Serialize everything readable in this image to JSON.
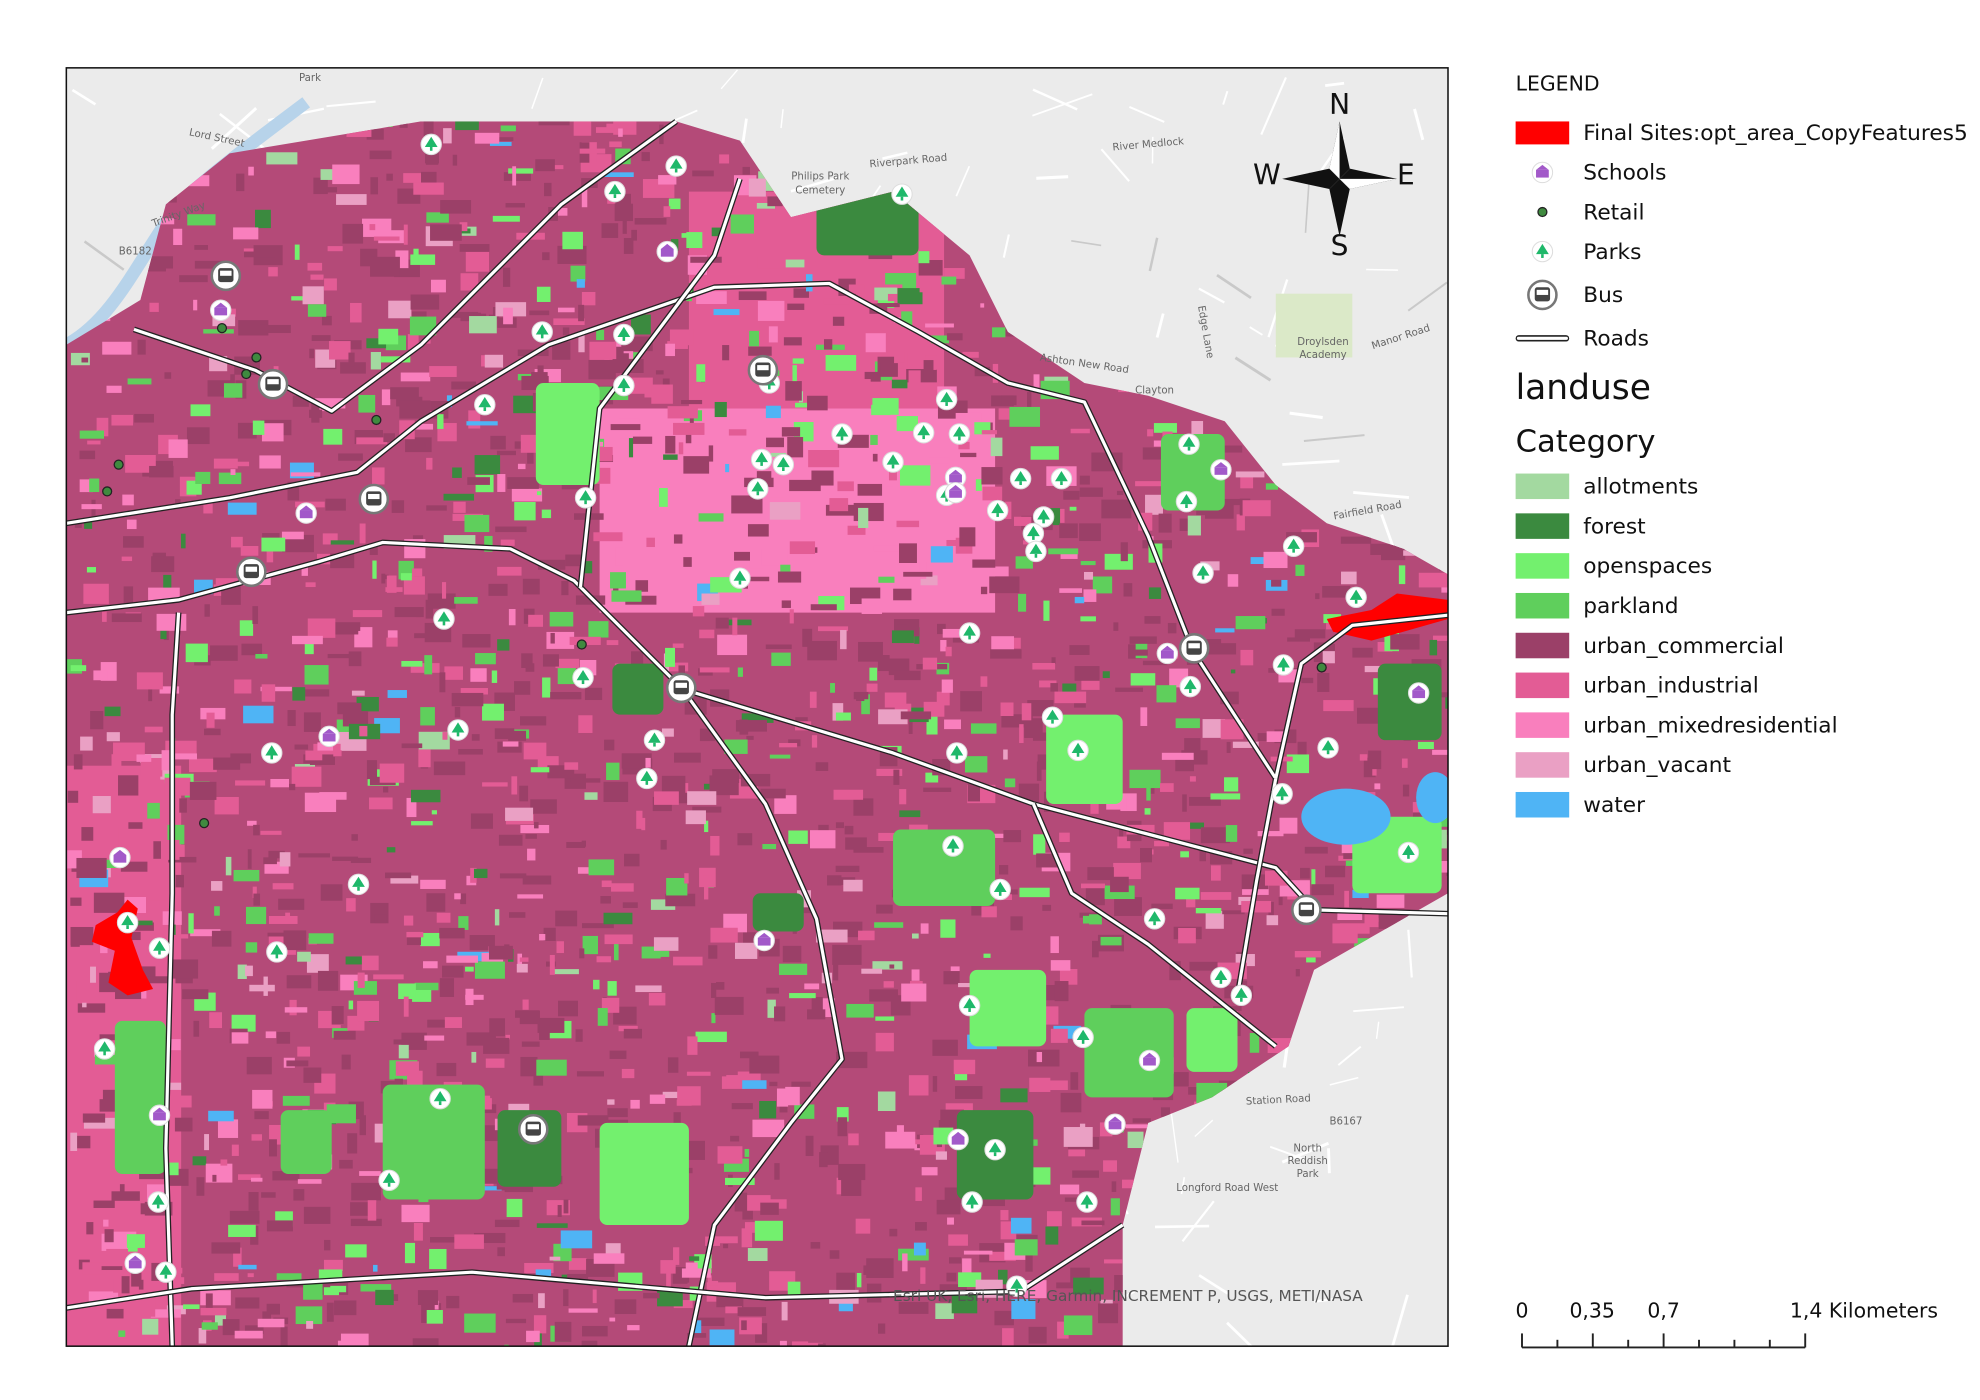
{
  "legend": {
    "title": "LEGEND",
    "entries": [
      "Final Sites:opt_area_CopyFeatures5",
      "Schools",
      "Retail",
      "Parks",
      "Bus",
      "Roads"
    ],
    "site_color": "#ff0000",
    "group_title": "landuse",
    "category_heading": "Category",
    "categories": [
      {
        "name": "allotments",
        "color": "#a3d9a0"
      },
      {
        "name": "forest",
        "color": "#3b8a3f"
      },
      {
        "name": "openspaces",
        "color": "#73f06e"
      },
      {
        "name": "parkland",
        "color": "#5fcf5c"
      },
      {
        "name": "urban_commercial",
        "color": "#9b4068"
      },
      {
        "name": "urban_industrial",
        "color": "#e35c95"
      },
      {
        "name": "urban_mixedresidential",
        "color": "#f97fbd"
      },
      {
        "name": "urban_vacant",
        "color": "#eaa0c4"
      },
      {
        "name": "water",
        "color": "#4fb4f5"
      }
    ]
  },
  "compass": {
    "n": "N",
    "e": "E",
    "s": "S",
    "w": "W"
  },
  "scale_bar": {
    "labels": [
      "0",
      "0,35",
      "0,7",
      "1,4 Kilometers"
    ]
  },
  "attribution": "Esri UK, Esri, HERE, Garmin, INCREMENT P, USGS, METI/NASA",
  "map_labels": [
    "Park",
    "Lord Street",
    "Trinity Way",
    "Riverpark Road",
    "Philips Park",
    "Cemetery",
    "River Medlock",
    "Ashton New Road",
    "Clayton",
    "Droylsden",
    "Academy",
    "Fairfield Road",
    "Station Road",
    "North",
    "Reddish",
    "Park",
    "Longford Road West",
    "B6167",
    "B6182",
    "Manor Road",
    "Edge Lane"
  ]
}
